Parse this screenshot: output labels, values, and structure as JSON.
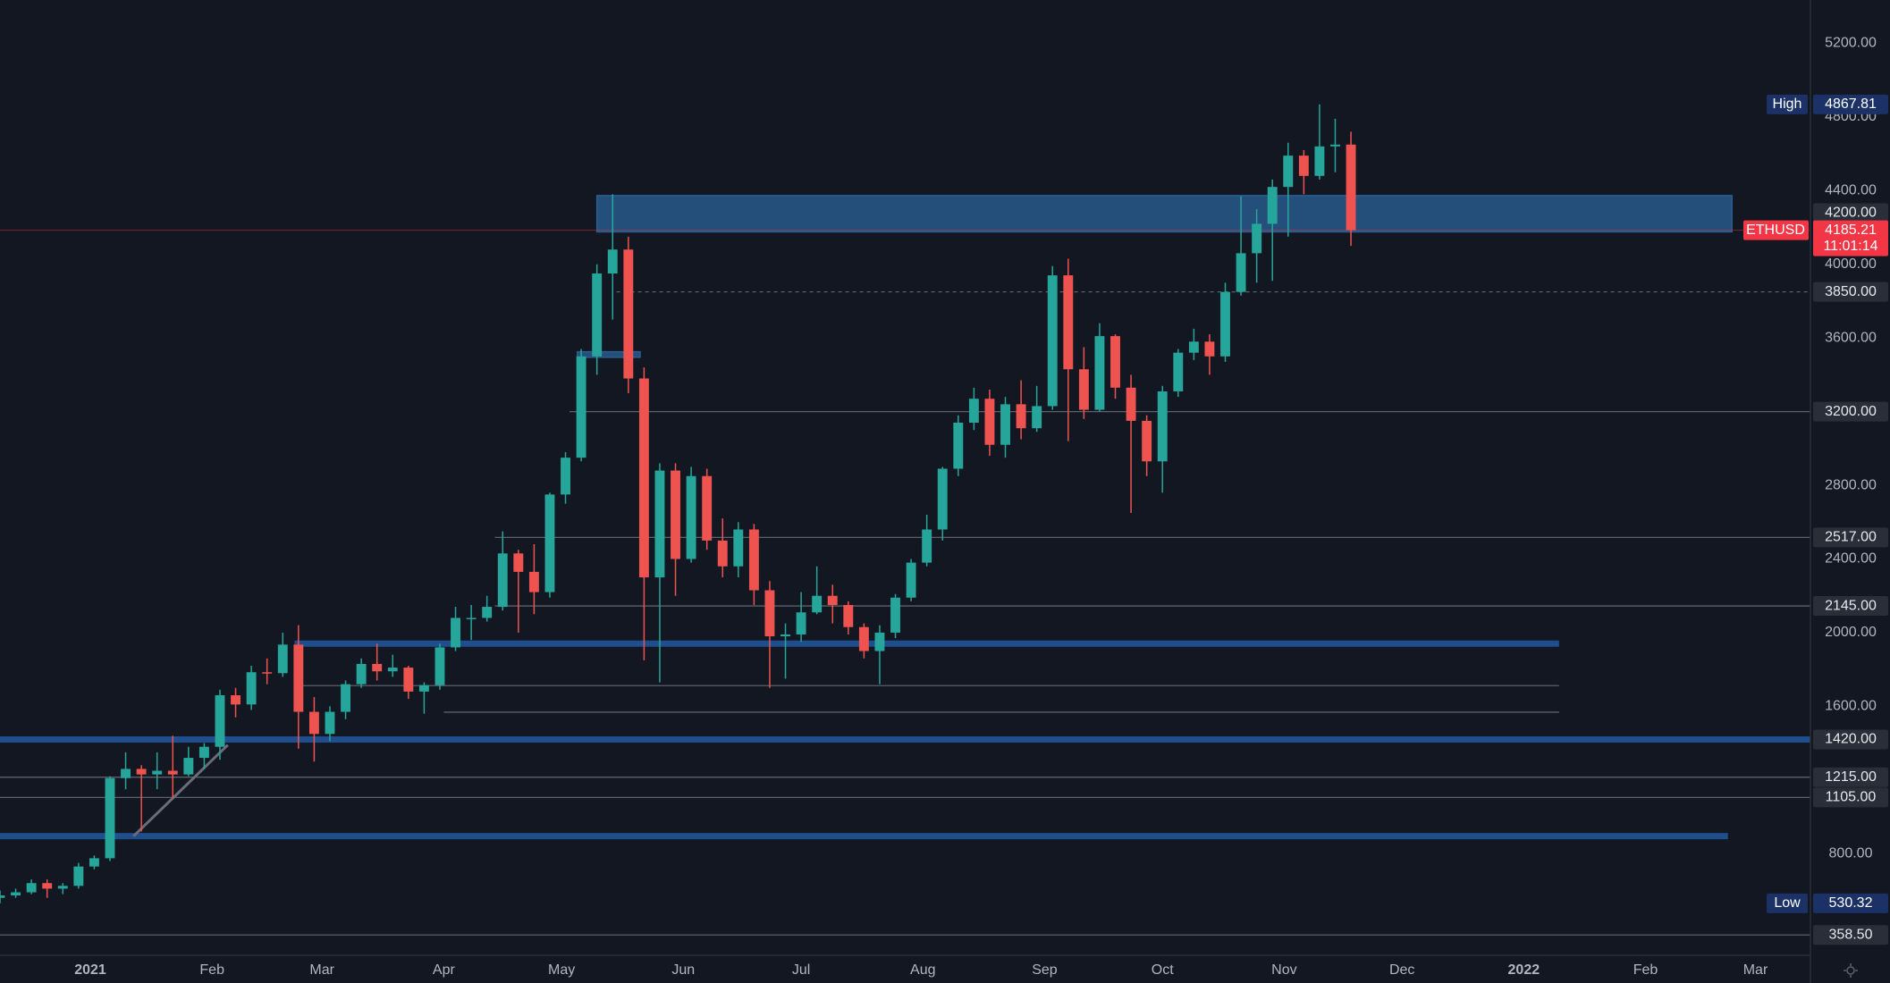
{
  "chart_data": {
    "type": "candlestick",
    "xlim": [
      -23,
      438
    ],
    "ylim": [
      248,
      5435
    ],
    "xticks": [
      {
        "value": 0,
        "label": "2021"
      },
      {
        "value": 31,
        "label": "Feb"
      },
      {
        "value": 59,
        "label": "Mar"
      },
      {
        "value": 90,
        "label": "Apr"
      },
      {
        "value": 120,
        "label": "May"
      },
      {
        "value": 151,
        "label": "Jun"
      },
      {
        "value": 181,
        "label": "Jul"
      },
      {
        "value": 212,
        "label": "Aug"
      },
      {
        "value": 243,
        "label": "Sep"
      },
      {
        "value": 273,
        "label": "Oct"
      },
      {
        "value": 304,
        "label": "Nov"
      },
      {
        "value": 334,
        "label": "Dec"
      },
      {
        "value": 365,
        "label": "2022"
      },
      {
        "value": 396,
        "label": "Feb"
      },
      {
        "value": 424,
        "label": "Mar"
      }
    ],
    "yticks": [
      {
        "value": 800,
        "label": "800.00"
      },
      {
        "value": 1600,
        "label": "1600.00"
      },
      {
        "value": 2000,
        "label": "2000.00"
      },
      {
        "value": 2400,
        "label": "2400.00"
      },
      {
        "value": 2800,
        "label": "2800.00"
      },
      {
        "value": 3600,
        "label": "3600.00"
      },
      {
        "value": 4000,
        "label": "4000.00"
      },
      {
        "value": 4400,
        "label": "4400.00"
      },
      {
        "value": 4800,
        "label": "4800.00"
      },
      {
        "value": 5200,
        "label": "5200.00"
      }
    ],
    "up_color": "#26a69a",
    "down_color": "#ef5350",
    "x": [
      -23,
      -19,
      -15,
      -11,
      -7,
      -3,
      1,
      5,
      9,
      13,
      17,
      21,
      25,
      29,
      33,
      37,
      41,
      45,
      49,
      53,
      57,
      61,
      65,
      69,
      73,
      77,
      81,
      85,
      89,
      93,
      97,
      101,
      105,
      109,
      113,
      117,
      121,
      125,
      129,
      133,
      137,
      141,
      145,
      149,
      153,
      157,
      161,
      165,
      169,
      173,
      177,
      181,
      185,
      189,
      193,
      197,
      201,
      205,
      209,
      213,
      217,
      221,
      225,
      229,
      233,
      237,
      241,
      245,
      249,
      253,
      257,
      261,
      265,
      269,
      273,
      277,
      281,
      285,
      289,
      293,
      297,
      301,
      305,
      309,
      313,
      317,
      321
    ],
    "open": [
      560,
      573,
      590,
      640,
      610,
      625,
      730,
      775,
      1210,
      1260,
      1230,
      1250,
      1230,
      1320,
      1380,
      1660,
      1610,
      1785,
      1780,
      1935,
      1570,
      1450,
      1570,
      1720,
      1830,
      1790,
      1810,
      1680,
      1715,
      1920,
      2080,
      2080,
      2140,
      2430,
      2330,
      2220,
      2750,
      2950,
      3500,
      3950,
      4080,
      3380,
      2300,
      2880,
      2400,
      2850,
      2500,
      2360,
      2560,
      2230,
      1980,
      1990,
      2110,
      2200,
      2150,
      2030,
      1900,
      2000,
      2190,
      2380,
      2560,
      2890,
      3140,
      3270,
      3020,
      3240,
      3110,
      3230,
      3940,
      3430,
      3210,
      3610,
      3330,
      3150,
      2930,
      3310,
      3520,
      3580,
      3500,
      3850,
      4060,
      4220,
      4420,
      4590,
      4480,
      4640,
      4650
    ],
    "high": [
      600,
      610,
      660,
      660,
      640,
      750,
      790,
      1220,
      1350,
      1280,
      1350,
      1440,
      1380,
      1400,
      1690,
      1700,
      1820,
      1860,
      2000,
      2040,
      1650,
      1600,
      1740,
      1860,
      1940,
      1880,
      1820,
      1730,
      1940,
      2140,
      2150,
      2200,
      2550,
      2450,
      2480,
      2760,
      2980,
      3540,
      4000,
      4380,
      4150,
      3440,
      2920,
      2920,
      2900,
      2890,
      2620,
      2600,
      2590,
      2280,
      2050,
      2220,
      2360,
      2260,
      2170,
      2050,
      2040,
      2210,
      2400,
      2640,
      2900,
      3180,
      3330,
      3320,
      3280,
      3370,
      3340,
      3990,
      4030,
      3550,
      3680,
      3620,
      3400,
      3180,
      3340,
      3540,
      3650,
      3620,
      3900,
      4370,
      4300,
      4460,
      4660,
      4620,
      4868,
      4790,
      4720
    ],
    "low": [
      530,
      560,
      580,
      560,
      580,
      610,
      715,
      760,
      1150,
      920,
      1150,
      1100,
      1220,
      1260,
      1310,
      1540,
      1580,
      1720,
      1760,
      1370,
      1300,
      1410,
      1530,
      1700,
      1740,
      1760,
      1640,
      1560,
      1690,
      1900,
      1960,
      2060,
      2120,
      2000,
      2100,
      2190,
      2700,
      2930,
      3400,
      3700,
      3300,
      1850,
      1730,
      2200,
      2380,
      2450,
      2300,
      2300,
      2150,
      1700,
      1750,
      1950,
      2100,
      2050,
      1990,
      1860,
      1720,
      1970,
      2170,
      2360,
      2500,
      2850,
      3100,
      2960,
      2950,
      3050,
      3090,
      3210,
      3040,
      3160,
      3200,
      3270,
      2650,
      2850,
      2760,
      3280,
      3480,
      3400,
      3470,
      3830,
      3900,
      3910,
      4150,
      4380,
      4460,
      4500,
      4100
    ],
    "close": [
      573,
      590,
      640,
      610,
      625,
      730,
      775,
      1210,
      1260,
      1230,
      1250,
      1230,
      1320,
      1380,
      1660,
      1610,
      1785,
      1780,
      1935,
      1570,
      1450,
      1570,
      1720,
      1830,
      1790,
      1810,
      1680,
      1715,
      1920,
      2080,
      2080,
      2140,
      2430,
      2330,
      2220,
      2750,
      2950,
      3500,
      3950,
      4080,
      3380,
      2300,
      2880,
      2400,
      2850,
      2500,
      2360,
      2560,
      2230,
      1980,
      1990,
      2110,
      2200,
      2150,
      2030,
      1900,
      2000,
      2190,
      2380,
      2560,
      2890,
      3140,
      3270,
      3020,
      3240,
      3110,
      3230,
      3940,
      3430,
      3210,
      3610,
      3330,
      3150,
      2930,
      3310,
      3520,
      3580,
      3500,
      3850,
      4060,
      4220,
      4420,
      4590,
      4480,
      4640,
      4650,
      4185
    ],
    "zones": [
      {
        "from": 129,
        "to": 418,
        "low": 4176,
        "high": 4373
      },
      {
        "from": 124,
        "to": 140,
        "low": 3495,
        "high": 3525
      }
    ],
    "zone_color": "#2b5e92",
    "levels": [
      {
        "value": 3850,
        "label": "3850.00",
        "from": 134,
        "to": 438,
        "style": "dashed"
      },
      {
        "value": 3200,
        "label": "3200.00",
        "from": 122,
        "to": 438,
        "style": "thin"
      },
      {
        "value": 2517,
        "label": "2517.00",
        "from": 103,
        "to": 438,
        "style": "thin"
      },
      {
        "value": 2145,
        "label": "2145.00",
        "from": 103,
        "to": 438,
        "style": "thin"
      },
      {
        "value": 1420,
        "label": "1420.00",
        "from": -23,
        "to": 438,
        "style": "thick"
      },
      {
        "value": 1215,
        "label": "1215.00",
        "from": -23,
        "to": 438,
        "style": "thin"
      },
      {
        "value": 1105,
        "label": "1105.00",
        "from": -23,
        "to": 438,
        "style": "thin"
      },
      {
        "value": 358.5,
        "label": "358.50",
        "from": -23,
        "to": 438,
        "style": "thin"
      },
      {
        "value": 1940,
        "from": 52,
        "to": 374,
        "style": "thick"
      },
      {
        "value": 1712,
        "from": 52,
        "to": 374,
        "style": "thin"
      },
      {
        "value": 1568,
        "from": 90,
        "to": 374,
        "style": "thin"
      },
      {
        "value": 895,
        "from": -23,
        "to": 417,
        "style": "thick"
      },
      {
        "value": 4200,
        "label": "4200.00",
        "style": "label-only"
      }
    ],
    "level_color": "#5d606b",
    "thick_color": "#1f4e8c",
    "trendline": {
      "x": [
        11,
        35
      ],
      "y": [
        895,
        1390
      ],
      "color": "#6a6d78"
    },
    "high_label": {
      "name": "High",
      "value": 4867.81
    },
    "low_label": {
      "name": "Low",
      "value": 530.32
    },
    "last_price": {
      "symbol": "ETHUSD",
      "value": 4185.21,
      "countdown": "11:01:14",
      "color": "#f23645"
    }
  }
}
